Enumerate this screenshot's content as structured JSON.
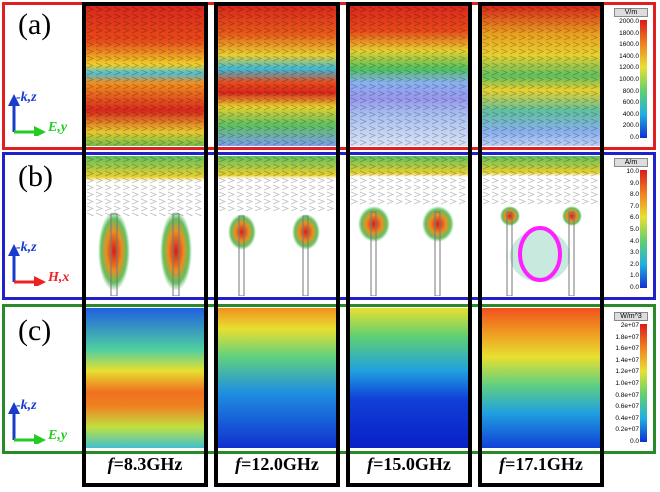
{
  "panels": [
    {
      "label": "(a)",
      "axis_up": "-k,z",
      "axis_right": "E,y",
      "axis_right_color": "#22cc22",
      "colorbar": {
        "unit": "V/m",
        "ticks": [
          "2000.0",
          "1800.0",
          "1600.0",
          "1400.0",
          "1200.0",
          "1000.0",
          "800.0",
          "600.0",
          "400.0",
          "200.0",
          "0.0"
        ]
      }
    },
    {
      "label": "(b)",
      "axis_up": "-k,z",
      "axis_right": "H,x",
      "axis_right_color": "#ee2222",
      "colorbar": {
        "unit": "A/m",
        "ticks": [
          "10.0",
          "9.0",
          "8.0",
          "7.0",
          "6.0",
          "5.0",
          "4.0",
          "3.0",
          "2.0",
          "1.0",
          "0.0"
        ]
      }
    },
    {
      "label": "(c)",
      "axis_up": "-k,z",
      "axis_right": "E,y",
      "axis_right_color": "#22cc22",
      "colorbar": {
        "unit": "W/m^3",
        "ticks": [
          "2e+07",
          "1.8e+07",
          "1.6e+07",
          "1.4e+07",
          "1.2e+07",
          "1.0e+07",
          "0.8e+07",
          "0.6e+07",
          "0.4e+07",
          "0.2e+07",
          "0.0"
        ]
      }
    }
  ],
  "frequencies": [
    {
      "symbol": "f",
      "value": "=8.3GHz"
    },
    {
      "symbol": "f",
      "value": "=12.0GHz"
    },
    {
      "symbol": "f",
      "value": "=15.0GHz"
    },
    {
      "symbol": "f",
      "value": "=17.1GHz"
    }
  ],
  "colors": {
    "frame_a": "#e02020",
    "frame_b": "#2020cc",
    "frame_c": "#2a8a2a",
    "highlight": "#ff20ff"
  }
}
